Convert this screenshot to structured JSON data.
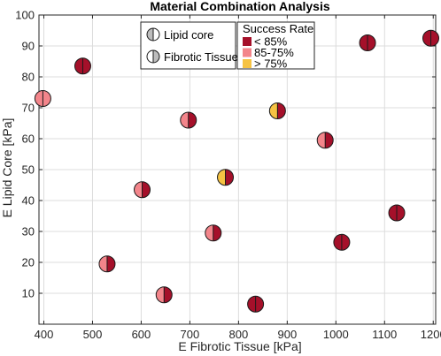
{
  "chart_data": {
    "type": "scatter",
    "title": "Material Combination Analysis",
    "xlabel": "E Fibrotic Tissue [kPa]",
    "ylabel": "E Lipid Core [kPa]",
    "xlim": [
      390,
      1205
    ],
    "ylim": [
      0,
      100
    ],
    "xticks": [
      400,
      500,
      600,
      700,
      800,
      900,
      1000,
      1100,
      1200
    ],
    "yticks": [
      10,
      20,
      30,
      40,
      50,
      60,
      70,
      80,
      90,
      100
    ],
    "grid": true,
    "marker_legend": {
      "placement": "top-center",
      "items": [
        {
          "label": "Lipid core",
          "half": "left"
        },
        {
          "label": "Fibrotic Tissue",
          "half": "right"
        }
      ]
    },
    "color_legend": {
      "title": "Success Rate",
      "placement": "top-center",
      "items": [
        {
          "label": "< 85%",
          "key": "low"
        },
        {
          "label": "85-75%",
          "key": "mid"
        },
        {
          "label": "> 75%",
          "key": "high"
        }
      ]
    },
    "colors": {
      "low": "#a5102a",
      "mid": "#f3858b",
      "high": "#f6c343"
    },
    "points": [
      {
        "x": 398,
        "y": 73,
        "lipid": "mid",
        "fibrotic": "mid"
      },
      {
        "x": 480,
        "y": 83.5,
        "lipid": "low",
        "fibrotic": "low"
      },
      {
        "x": 530,
        "y": 19.5,
        "lipid": "mid",
        "fibrotic": "low"
      },
      {
        "x": 602,
        "y": 43.5,
        "lipid": "mid",
        "fibrotic": "low"
      },
      {
        "x": 647,
        "y": 9.5,
        "lipid": "mid",
        "fibrotic": "low"
      },
      {
        "x": 697,
        "y": 66,
        "lipid": "mid",
        "fibrotic": "low"
      },
      {
        "x": 748,
        "y": 29.5,
        "lipid": "mid",
        "fibrotic": "low"
      },
      {
        "x": 773,
        "y": 47.5,
        "lipid": "high",
        "fibrotic": "low"
      },
      {
        "x": 835,
        "y": 6.5,
        "lipid": "low",
        "fibrotic": "low"
      },
      {
        "x": 880,
        "y": 69,
        "lipid": "high",
        "fibrotic": "low"
      },
      {
        "x": 978,
        "y": 59.5,
        "lipid": "mid",
        "fibrotic": "low"
      },
      {
        "x": 1012,
        "y": 26.5,
        "lipid": "low",
        "fibrotic": "low"
      },
      {
        "x": 1065,
        "y": 91,
        "lipid": "low",
        "fibrotic": "low"
      },
      {
        "x": 1125,
        "y": 36,
        "lipid": "low",
        "fibrotic": "low"
      },
      {
        "x": 1195,
        "y": 92.5,
        "lipid": "low",
        "fibrotic": "low"
      }
    ]
  }
}
